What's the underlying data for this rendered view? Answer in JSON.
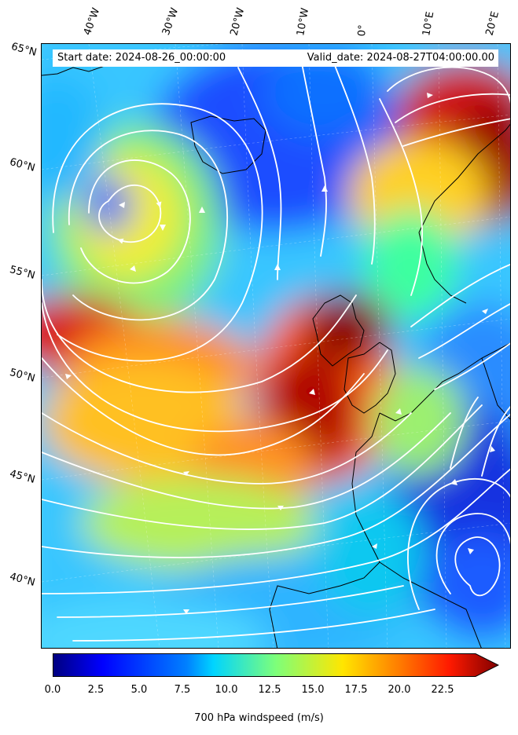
{
  "header": {
    "start_date": "Start date: 2024-08-26_00:00:00",
    "valid_date": "Valid_date: 2024-08-27T04:00:00.00"
  },
  "longitude_labels": [
    "40°W",
    "30°W",
    "20°W",
    "10°W",
    "0°",
    "10°E",
    "20°E"
  ],
  "latitude_labels": [
    "65°N",
    "60°N",
    "55°N",
    "50°N",
    "45°N",
    "40°N"
  ],
  "colorbar": {
    "label": "700 hPa windspeed (m/s)",
    "ticks": [
      "0.0",
      "2.5",
      "5.0",
      "7.5",
      "10.0",
      "12.5",
      "15.0",
      "17.5",
      "20.0",
      "22.5"
    ],
    "min": 0,
    "max": 25,
    "extend": "max",
    "colormap": "jet"
  },
  "colors": {
    "streamlines": "#ffffff",
    "coastline": "#000000"
  }
}
